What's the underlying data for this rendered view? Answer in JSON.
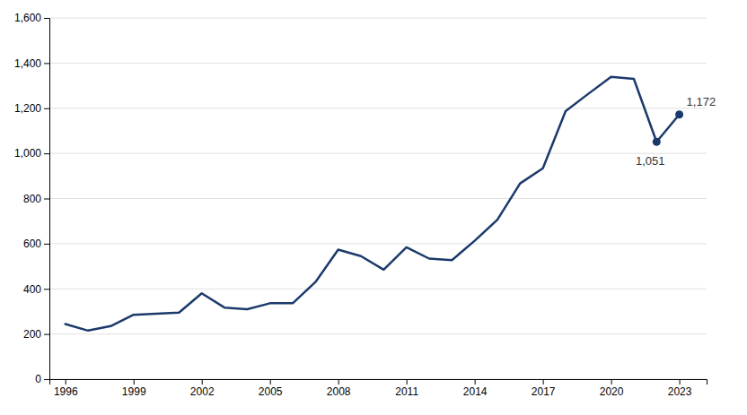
{
  "chart_data": {
    "type": "line",
    "x": [
      1996,
      1997,
      1998,
      1999,
      2000,
      2001,
      2002,
      2003,
      2004,
      2005,
      2006,
      2007,
      2008,
      2009,
      2010,
      2011,
      2012,
      2013,
      2014,
      2015,
      2016,
      2017,
      2018,
      2019,
      2020,
      2021,
      2022,
      2023
    ],
    "values": [
      244,
      215,
      235,
      285,
      290,
      295,
      380,
      317,
      310,
      336,
      336,
      430,
      574,
      545,
      485,
      584,
      534,
      527,
      613,
      706,
      867,
      934,
      1187,
      1264,
      1339,
      1330,
      1051,
      1172
    ],
    "color": "#1b3a6b",
    "xlim": [
      1995.3,
      2024.2
    ],
    "xticks": [
      1996,
      1999,
      2002,
      2005,
      2008,
      2011,
      2014,
      2017,
      2020,
      2023
    ],
    "ylim": [
      0,
      1600
    ],
    "yticks": [
      0,
      200,
      400,
      600,
      800,
      {
        "value": 1000,
        "label": "1,000"
      },
      {
        "value": 1200,
        "label": "1,200"
      },
      {
        "value": 1400,
        "label": "1,400"
      },
      {
        "value": 1600,
        "label": "1,600"
      }
    ],
    "grid": true,
    "annotations": [
      {
        "x": 2022,
        "y": 1051,
        "text": "1,051"
      },
      {
        "x": 2023,
        "y": 1172,
        "text": "1,172"
      }
    ]
  }
}
